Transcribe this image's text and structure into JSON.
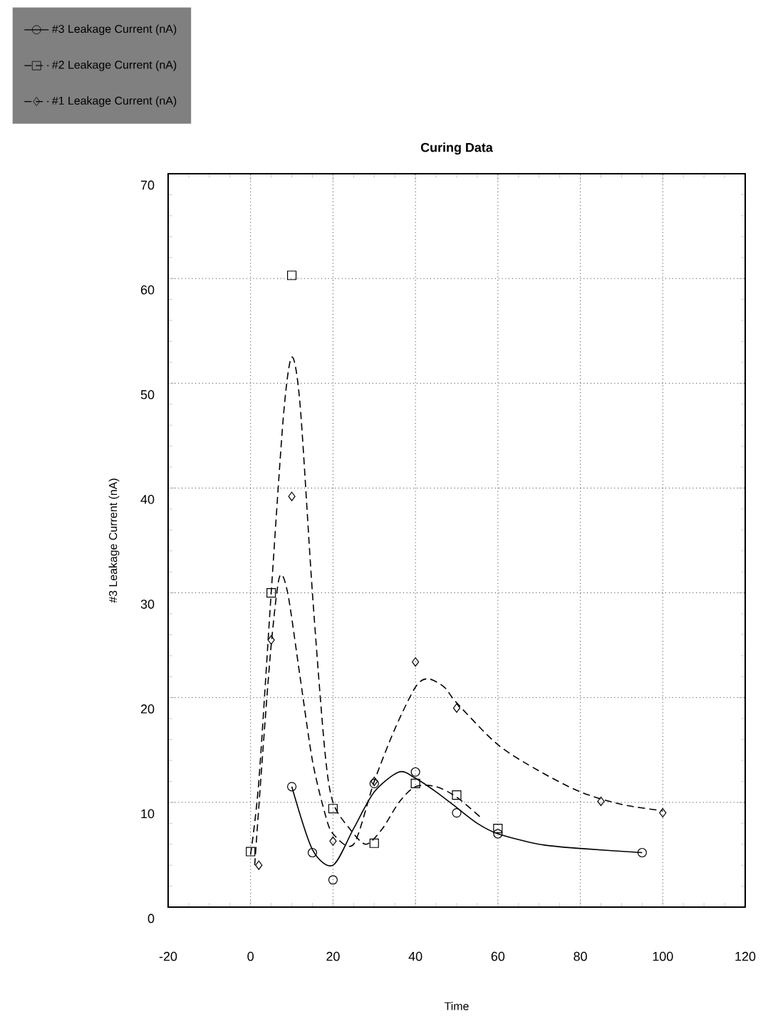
{
  "chart_data": {
    "type": "scatter",
    "title": "Curing Data",
    "xlabel": "Time",
    "ylabel": "#3 Leakage Current (nA)",
    "xlim": [
      -20,
      120
    ],
    "xticks": [
      -20,
      0,
      20,
      40,
      60,
      80,
      100,
      120
    ],
    "ylim": [
      0,
      70
    ],
    "yticks": [
      0,
      10,
      20,
      30,
      40,
      50,
      60,
      70
    ],
    "grid": true,
    "legend": "top left",
    "series": [
      {
        "name": "#3 Leakage Current (nA)",
        "color": "#000000",
        "marker": "circle",
        "line_style": "solid",
        "x": [
          10,
          15,
          20,
          30,
          40,
          50,
          60,
          95
        ],
        "values": [
          11.5,
          5.2,
          2.6,
          11.8,
          12.9,
          9,
          7,
          5.2
        ]
      },
      {
        "name": "#2 Leakage Current (nA)",
        "color": "#000000",
        "marker": "square",
        "line_style": "dashed",
        "x": [
          0,
          5,
          10,
          20,
          30,
          40,
          50,
          60
        ],
        "values": [
          5.3,
          30,
          60.3,
          9.4,
          6.1,
          11.8,
          10.7,
          7.5
        ]
      },
      {
        "name": "#1 Leakage Current (nA)",
        "color": "#000000",
        "marker": "diamond",
        "line_style": "dashed",
        "x": [
          2,
          5,
          10,
          20,
          30,
          40,
          50,
          85,
          100
        ],
        "values": [
          4,
          25.5,
          39.2,
          6.3,
          12,
          23.4,
          19,
          10.1,
          9.0
        ]
      },
      {
        "type": "line",
        "color": "#000000",
        "line_style": "solid",
        "marker": "none",
        "x": [
          10,
          15,
          20,
          25,
          30,
          36,
          40,
          45,
          50,
          55,
          60,
          70,
          80,
          95
        ],
        "values": [
          11.5,
          5.5,
          4.0,
          7.5,
          11,
          12.9,
          12.3,
          11,
          9.5,
          8,
          7,
          6,
          5.6,
          5.2
        ]
      },
      {
        "type": "line",
        "color": "#000000",
        "line_style": "dashed",
        "marker": "none",
        "x": [
          0,
          2,
          5,
          8,
          10,
          12,
          15,
          18,
          20,
          24,
          28,
          32,
          36,
          40,
          45,
          50,
          56
        ],
        "values": [
          5,
          12,
          30,
          47,
          52.5,
          48,
          30,
          15,
          10,
          7.5,
          6,
          7.5,
          10,
          11.5,
          11.5,
          10.5,
          8.5
        ]
      },
      {
        "type": "line",
        "color": "#000000",
        "line_style": "dashed",
        "marker": "none",
        "x": [
          1,
          3,
          5,
          7,
          9,
          12,
          15,
          18,
          20,
          25,
          30,
          35,
          40,
          43,
          47,
          50,
          60,
          70,
          80,
          90,
          100
        ],
        "values": [
          4,
          15,
          25,
          31.5,
          30,
          22,
          14,
          9,
          7,
          6,
          12,
          17,
          21,
          21.8,
          21,
          19.5,
          15.5,
          13,
          11,
          9.8,
          9.2
        ]
      }
    ]
  }
}
